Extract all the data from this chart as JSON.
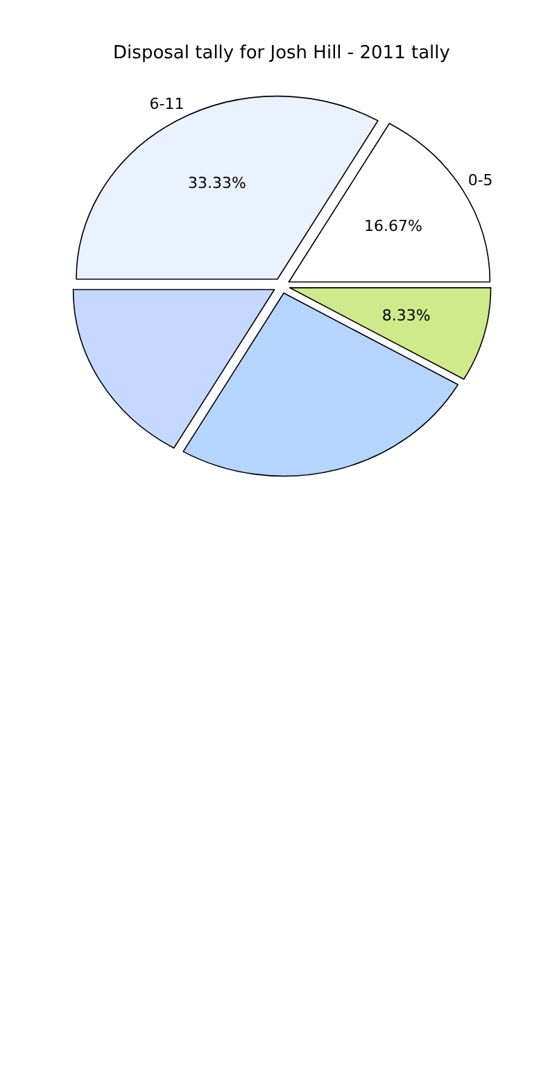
{
  "chart_data": {
    "type": "pie",
    "title": "Disposal tally for Josh Hill - 2011 tally",
    "categories": [
      "0-5",
      "6-11",
      null,
      null,
      null
    ],
    "values": [
      16.67,
      33.33,
      16.67,
      25,
      8.33
    ],
    "value_labels": [
      "16.67%",
      "33.33%",
      null,
      null,
      "8.33%"
    ],
    "colors": [
      "#ffffff",
      "#eaf1ff",
      "#c5d8ff",
      "#b5d5ff",
      "#cfea8a"
    ],
    "legend": false
  }
}
